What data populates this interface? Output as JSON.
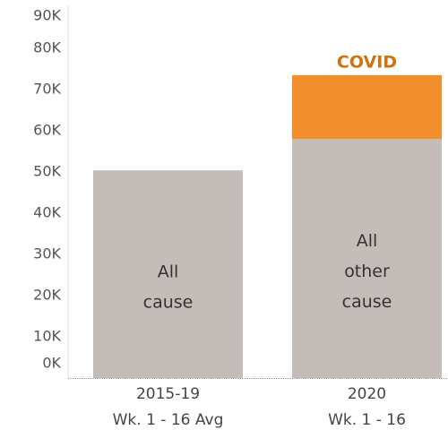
{
  "chart_data": {
    "type": "stacked_bar",
    "categories": [
      [
        "2015-19",
        "Wk. 1 - 16 Avg"
      ],
      [
        "2020",
        "Wk. 1 - 16"
      ]
    ],
    "series": [
      {
        "color": "#c3bcb8",
        "values": [
          50400,
          58000
        ],
        "labels": [
          [
            "All",
            "cause"
          ],
          [
            "All",
            "other",
            "cause"
          ]
        ]
      },
      {
        "name": "COVID",
        "color": "#f28e2b",
        "values": [
          null,
          15500
        ]
      }
    ],
    "ylim": [
      0,
      90000
    ],
    "yticks": [
      {
        "value": 0,
        "label": "0K"
      },
      {
        "value": 10000,
        "label": "10K"
      },
      {
        "value": 20000,
        "label": "20K"
      },
      {
        "value": 30000,
        "label": "30K"
      },
      {
        "value": 40000,
        "label": "40K"
      },
      {
        "value": 50000,
        "label": "50K"
      },
      {
        "value": 60000,
        "label": "60K"
      },
      {
        "value": 70000,
        "label": "70K"
      },
      {
        "value": 80000,
        "label": "80K"
      },
      {
        "value": 90000,
        "label": "90K"
      }
    ]
  }
}
